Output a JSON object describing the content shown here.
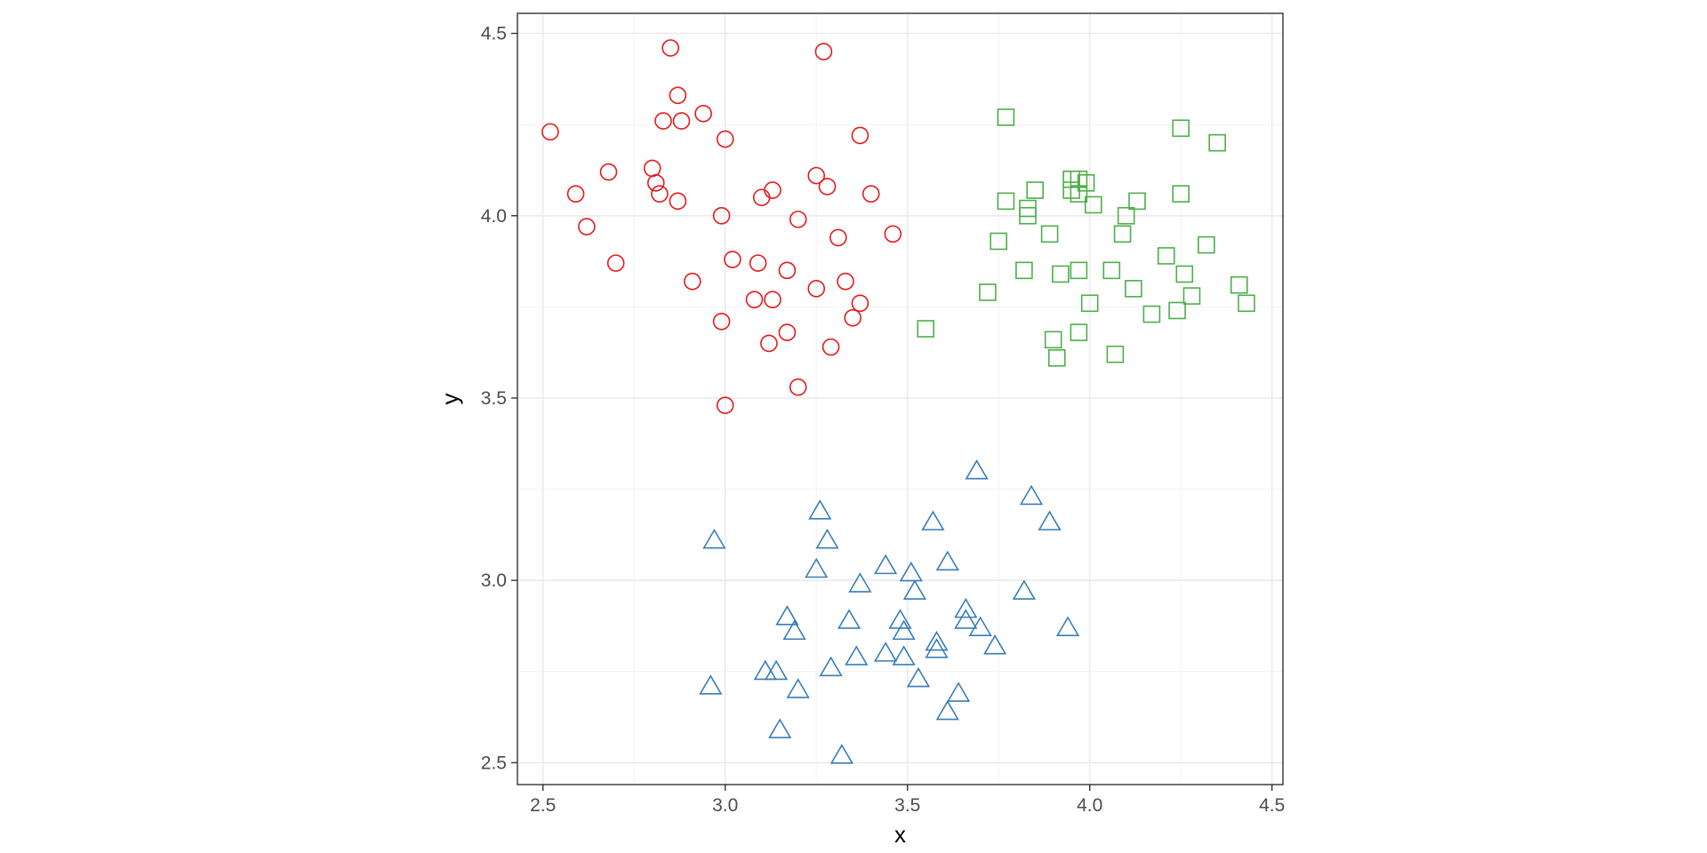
{
  "chart_data": {
    "type": "scatter",
    "title": "",
    "xlabel": "x",
    "ylabel": "y",
    "xlim": [
      2.43,
      4.53
    ],
    "ylim": [
      2.44,
      4.555
    ],
    "x_ticks": [
      "2.5",
      "3.0",
      "3.5",
      "4.0",
      "4.5"
    ],
    "y_ticks": [
      "2.5",
      "3.0",
      "3.5",
      "4.0",
      "4.5"
    ],
    "grid": true,
    "legend": "none",
    "series": [
      {
        "marker": "circle",
        "color": "#e41a1c",
        "points": [
          [
            2.52,
            4.23
          ],
          [
            2.85,
            4.46
          ],
          [
            3.27,
            4.45
          ],
          [
            2.87,
            4.33
          ],
          [
            2.83,
            4.26
          ],
          [
            2.88,
            4.26
          ],
          [
            2.94,
            4.28
          ],
          [
            3.0,
            4.21
          ],
          [
            3.37,
            4.22
          ],
          [
            2.68,
            4.12
          ],
          [
            2.8,
            4.13
          ],
          [
            2.81,
            4.09
          ],
          [
            2.59,
            4.06
          ],
          [
            2.82,
            4.06
          ],
          [
            2.87,
            4.04
          ],
          [
            3.25,
            4.11
          ],
          [
            3.13,
            4.07
          ],
          [
            3.28,
            4.08
          ],
          [
            3.1,
            4.05
          ],
          [
            3.4,
            4.06
          ],
          [
            2.99,
            4.0
          ],
          [
            3.2,
            3.99
          ],
          [
            2.62,
            3.97
          ],
          [
            3.31,
            3.94
          ],
          [
            3.46,
            3.95
          ],
          [
            2.7,
            3.87
          ],
          [
            3.02,
            3.88
          ],
          [
            3.09,
            3.87
          ],
          [
            3.17,
            3.85
          ],
          [
            2.91,
            3.82
          ],
          [
            3.33,
            3.82
          ],
          [
            3.25,
            3.8
          ],
          [
            3.08,
            3.77
          ],
          [
            3.13,
            3.77
          ],
          [
            3.37,
            3.76
          ],
          [
            2.99,
            3.71
          ],
          [
            3.35,
            3.72
          ],
          [
            3.17,
            3.68
          ],
          [
            3.12,
            3.65
          ],
          [
            3.29,
            3.64
          ],
          [
            3.2,
            3.53
          ],
          [
            3.0,
            3.48
          ]
        ]
      },
      {
        "marker": "square",
        "color": "#4daf4a",
        "points": [
          [
            3.77,
            4.27
          ],
          [
            4.25,
            4.24
          ],
          [
            4.35,
            4.2
          ],
          [
            3.95,
            4.1
          ],
          [
            3.97,
            4.1
          ],
          [
            3.99,
            4.09
          ],
          [
            3.95,
            4.07
          ],
          [
            3.85,
            4.07
          ],
          [
            4.25,
            4.06
          ],
          [
            3.97,
            4.06
          ],
          [
            3.77,
            4.04
          ],
          [
            4.13,
            4.04
          ],
          [
            4.01,
            4.03
          ],
          [
            3.83,
            4.02
          ],
          [
            3.83,
            4.0
          ],
          [
            4.1,
            4.0
          ],
          [
            3.89,
            3.95
          ],
          [
            4.09,
            3.95
          ],
          [
            3.75,
            3.93
          ],
          [
            4.32,
            3.92
          ],
          [
            4.21,
            3.89
          ],
          [
            3.82,
            3.85
          ],
          [
            3.97,
            3.85
          ],
          [
            4.06,
            3.85
          ],
          [
            3.92,
            3.84
          ],
          [
            4.26,
            3.84
          ],
          [
            4.41,
            3.81
          ],
          [
            4.12,
            3.8
          ],
          [
            3.72,
            3.79
          ],
          [
            4.28,
            3.78
          ],
          [
            4.0,
            3.76
          ],
          [
            4.43,
            3.76
          ],
          [
            4.24,
            3.74
          ],
          [
            4.17,
            3.73
          ],
          [
            3.55,
            3.69
          ],
          [
            3.97,
            3.68
          ],
          [
            3.9,
            3.66
          ],
          [
            3.91,
            3.61
          ],
          [
            4.07,
            3.62
          ]
        ]
      },
      {
        "marker": "triangle",
        "color": "#377eb8",
        "points": [
          [
            3.69,
            3.3
          ],
          [
            3.84,
            3.23
          ],
          [
            3.26,
            3.19
          ],
          [
            3.57,
            3.16
          ],
          [
            3.89,
            3.16
          ],
          [
            2.97,
            3.11
          ],
          [
            3.28,
            3.11
          ],
          [
            3.61,
            3.05
          ],
          [
            3.44,
            3.04
          ],
          [
            3.25,
            3.03
          ],
          [
            3.51,
            3.02
          ],
          [
            3.37,
            2.99
          ],
          [
            3.52,
            2.97
          ],
          [
            3.82,
            2.97
          ],
          [
            3.66,
            2.92
          ],
          [
            3.17,
            2.9
          ],
          [
            3.34,
            2.89
          ],
          [
            3.48,
            2.89
          ],
          [
            3.66,
            2.89
          ],
          [
            3.7,
            2.87
          ],
          [
            3.94,
            2.87
          ],
          [
            3.49,
            2.86
          ],
          [
            3.19,
            2.86
          ],
          [
            3.58,
            2.83
          ],
          [
            3.58,
            2.81
          ],
          [
            3.74,
            2.82
          ],
          [
            3.44,
            2.8
          ],
          [
            3.36,
            2.79
          ],
          [
            3.49,
            2.79
          ],
          [
            3.29,
            2.76
          ],
          [
            3.11,
            2.75
          ],
          [
            3.14,
            2.75
          ],
          [
            3.53,
            2.73
          ],
          [
            2.96,
            2.71
          ],
          [
            3.2,
            2.7
          ],
          [
            3.64,
            2.69
          ],
          [
            3.61,
            2.64
          ],
          [
            3.15,
            2.59
          ],
          [
            3.32,
            2.52
          ]
        ]
      }
    ]
  }
}
